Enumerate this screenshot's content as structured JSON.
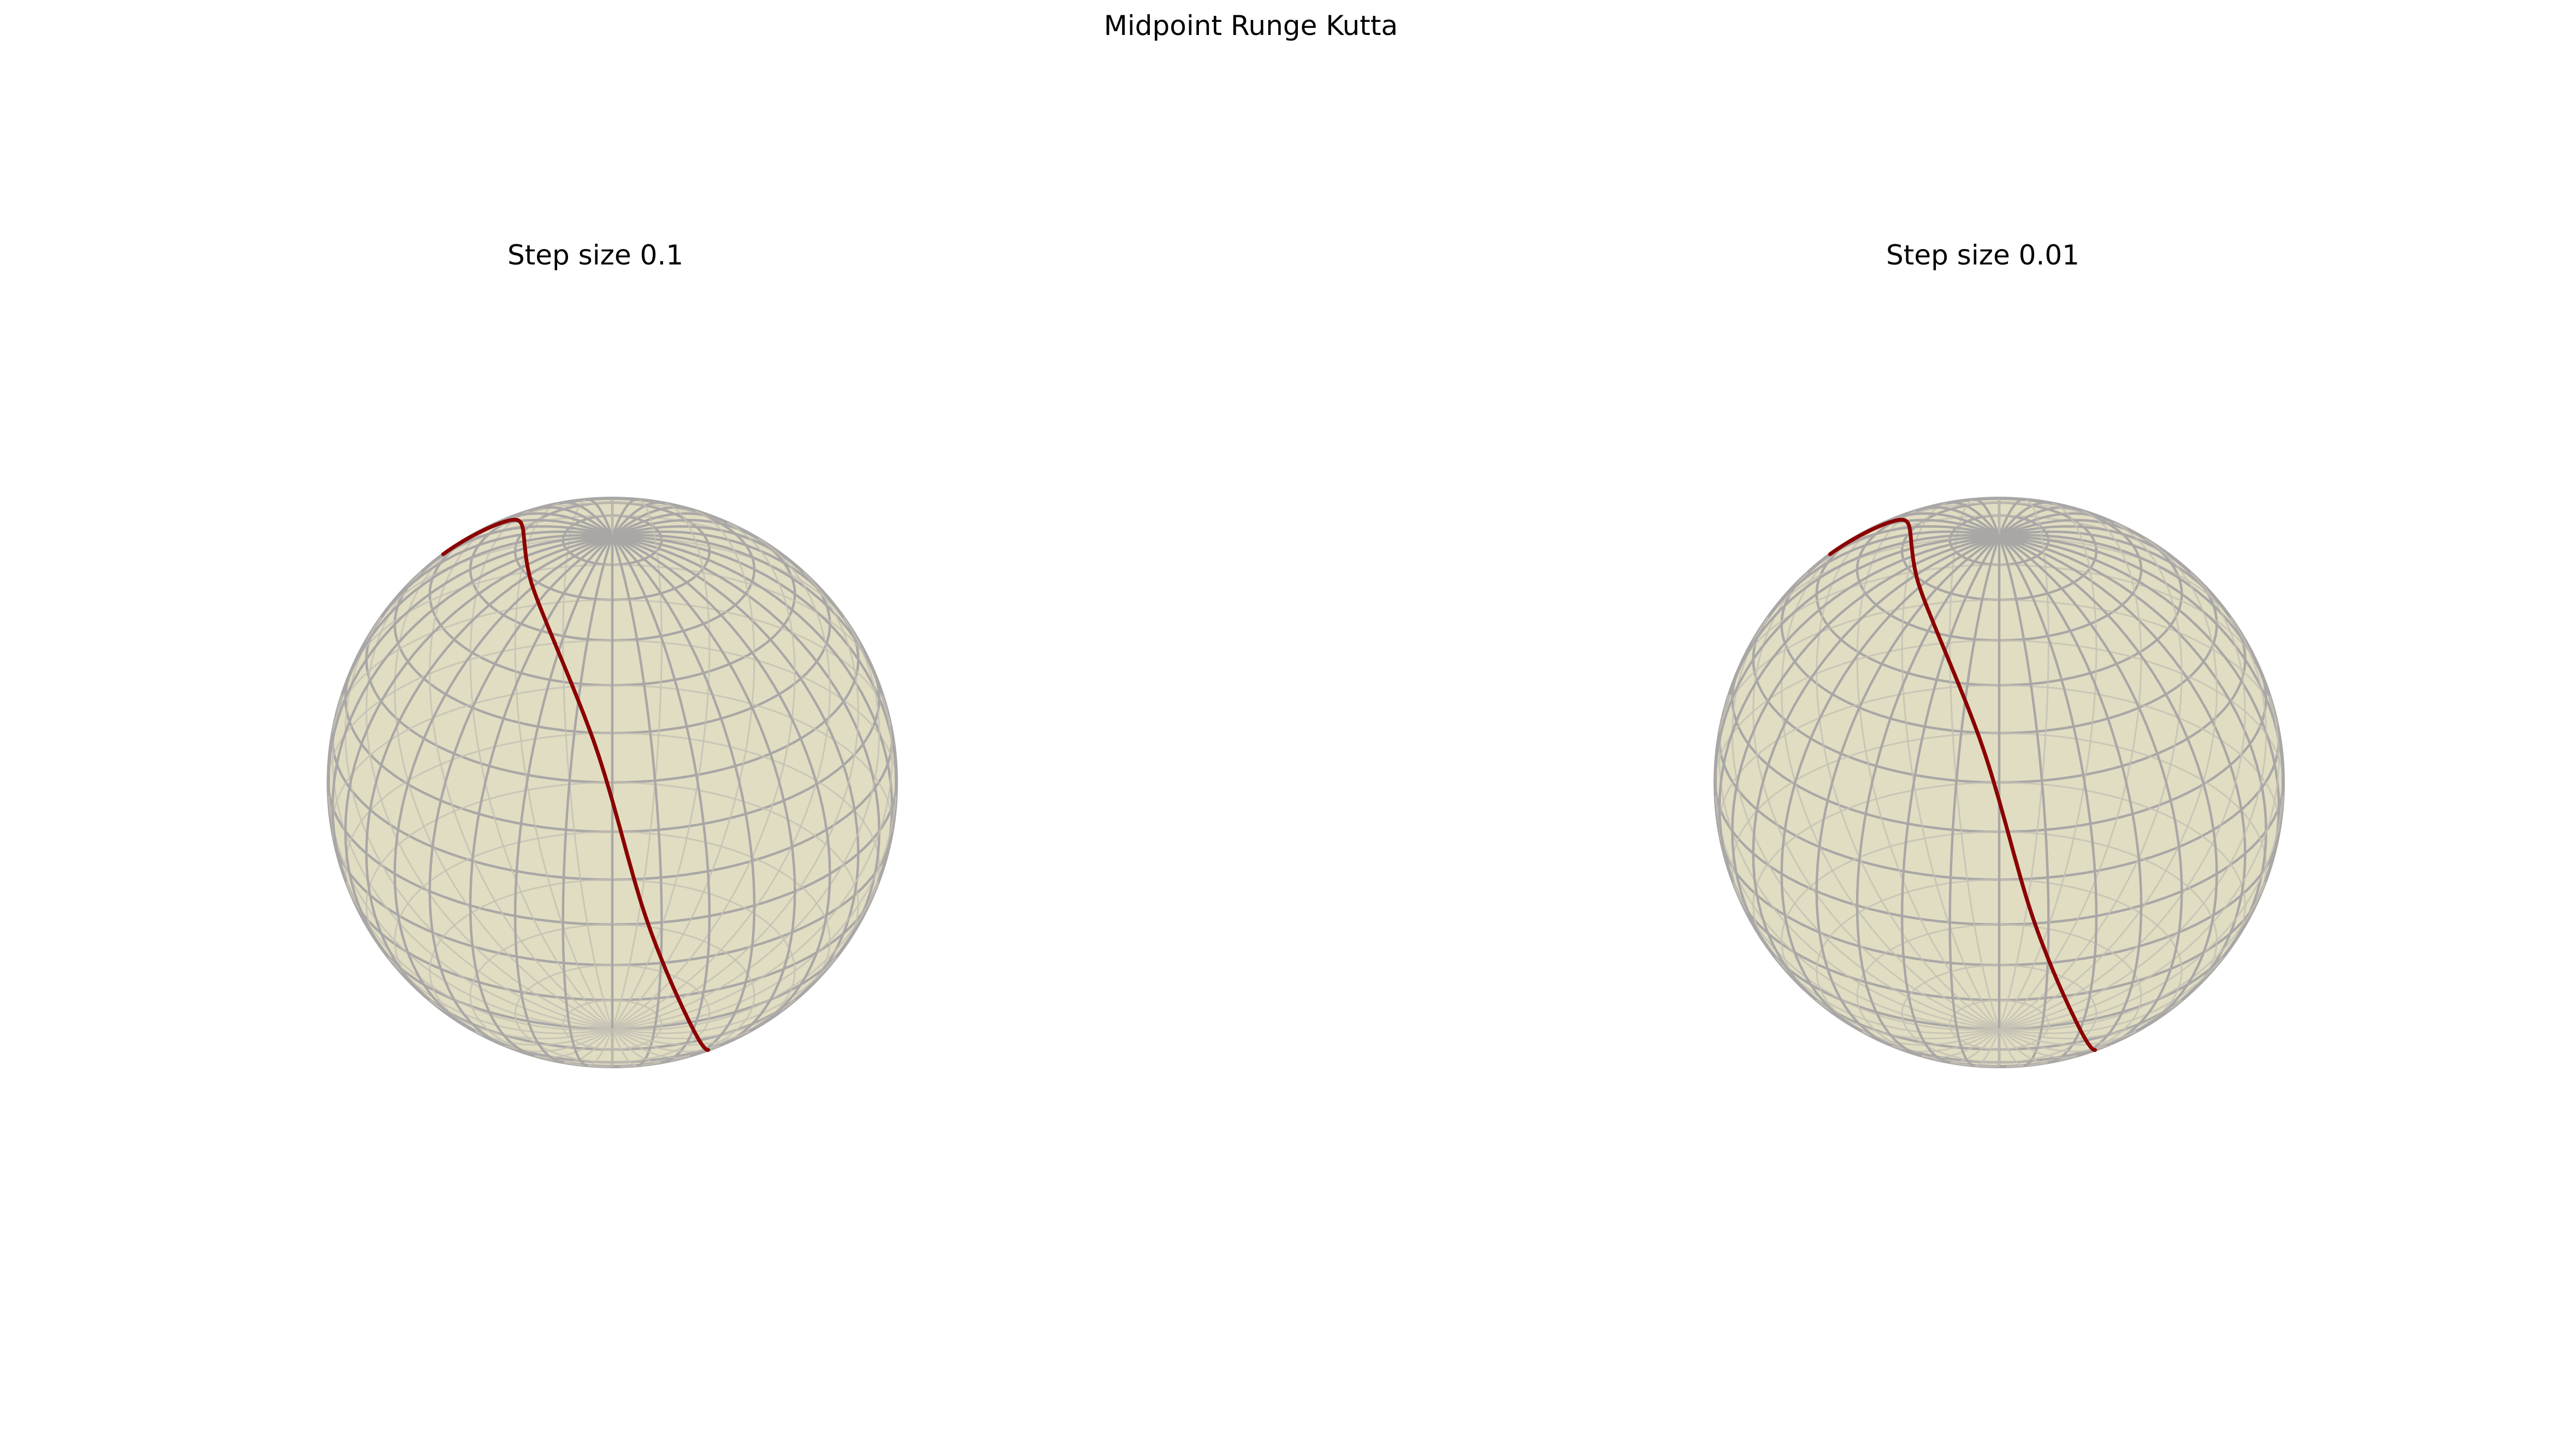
{
  "figure": {
    "title": "Midpoint Runge Kutta"
  },
  "colors": {
    "sphere_fill": "#ded9bb",
    "sphere_grid": "#a9a7a6",
    "sphere_grid_back": "#c4c1b4",
    "trajectory": "#8b0000",
    "background": "#ffffff"
  },
  "chart_data": [
    {
      "type": "3d-line",
      "title": "Step size 0.1",
      "surface": "unit-sphere",
      "step_size": 0.1,
      "grid": true,
      "axes_visible": false,
      "view": {
        "elevation_deg": 30,
        "azimuth_deg": -60
      },
      "series": [
        {
          "trajectory": "closed great-circle loop on the unit sphere",
          "points_xyz": [
            [
              -0.45,
              0.1,
              0.89
            ],
            [
              -0.12,
              -0.35,
              0.93
            ],
            [
              0.35,
              -0.72,
              0.6
            ],
            [
              0.6,
              -0.8,
              0.02
            ],
            [
              0.64,
              -0.55,
              -0.53
            ],
            [
              0.42,
              -0.05,
              -0.9
            ],
            [
              0.05,
              0.42,
              -0.9
            ],
            [
              -0.3,
              0.6,
              -0.74
            ],
            [
              -0.62,
              0.55,
              -0.56
            ],
            [
              -0.8,
              0.35,
              -0.48
            ],
            [
              -0.8,
              0.05,
              0.1
            ],
            [
              -0.7,
              0.05,
              0.71
            ],
            [
              -0.45,
              0.1,
              0.89
            ]
          ]
        }
      ]
    },
    {
      "type": "3d-line",
      "title": "Step size 0.01",
      "surface": "unit-sphere",
      "step_size": 0.01,
      "grid": true,
      "axes_visible": false,
      "view": {
        "elevation_deg": 30,
        "azimuth_deg": -60
      },
      "series": [
        {
          "trajectory": "closed great-circle loop on the unit sphere",
          "points_xyz": [
            [
              -0.45,
              0.1,
              0.89
            ],
            [
              -0.12,
              -0.35,
              0.93
            ],
            [
              0.35,
              -0.72,
              0.6
            ],
            [
              0.6,
              -0.8,
              0.02
            ],
            [
              0.64,
              -0.55,
              -0.53
            ],
            [
              0.42,
              -0.05,
              -0.9
            ],
            [
              0.05,
              0.42,
              -0.9
            ],
            [
              -0.3,
              0.6,
              -0.74
            ],
            [
              -0.62,
              0.55,
              -0.56
            ],
            [
              -0.8,
              0.35,
              -0.48
            ],
            [
              -0.8,
              0.05,
              0.1
            ],
            [
              -0.7,
              0.05,
              0.71
            ],
            [
              -0.45,
              0.1,
              0.89
            ]
          ]
        }
      ]
    }
  ]
}
